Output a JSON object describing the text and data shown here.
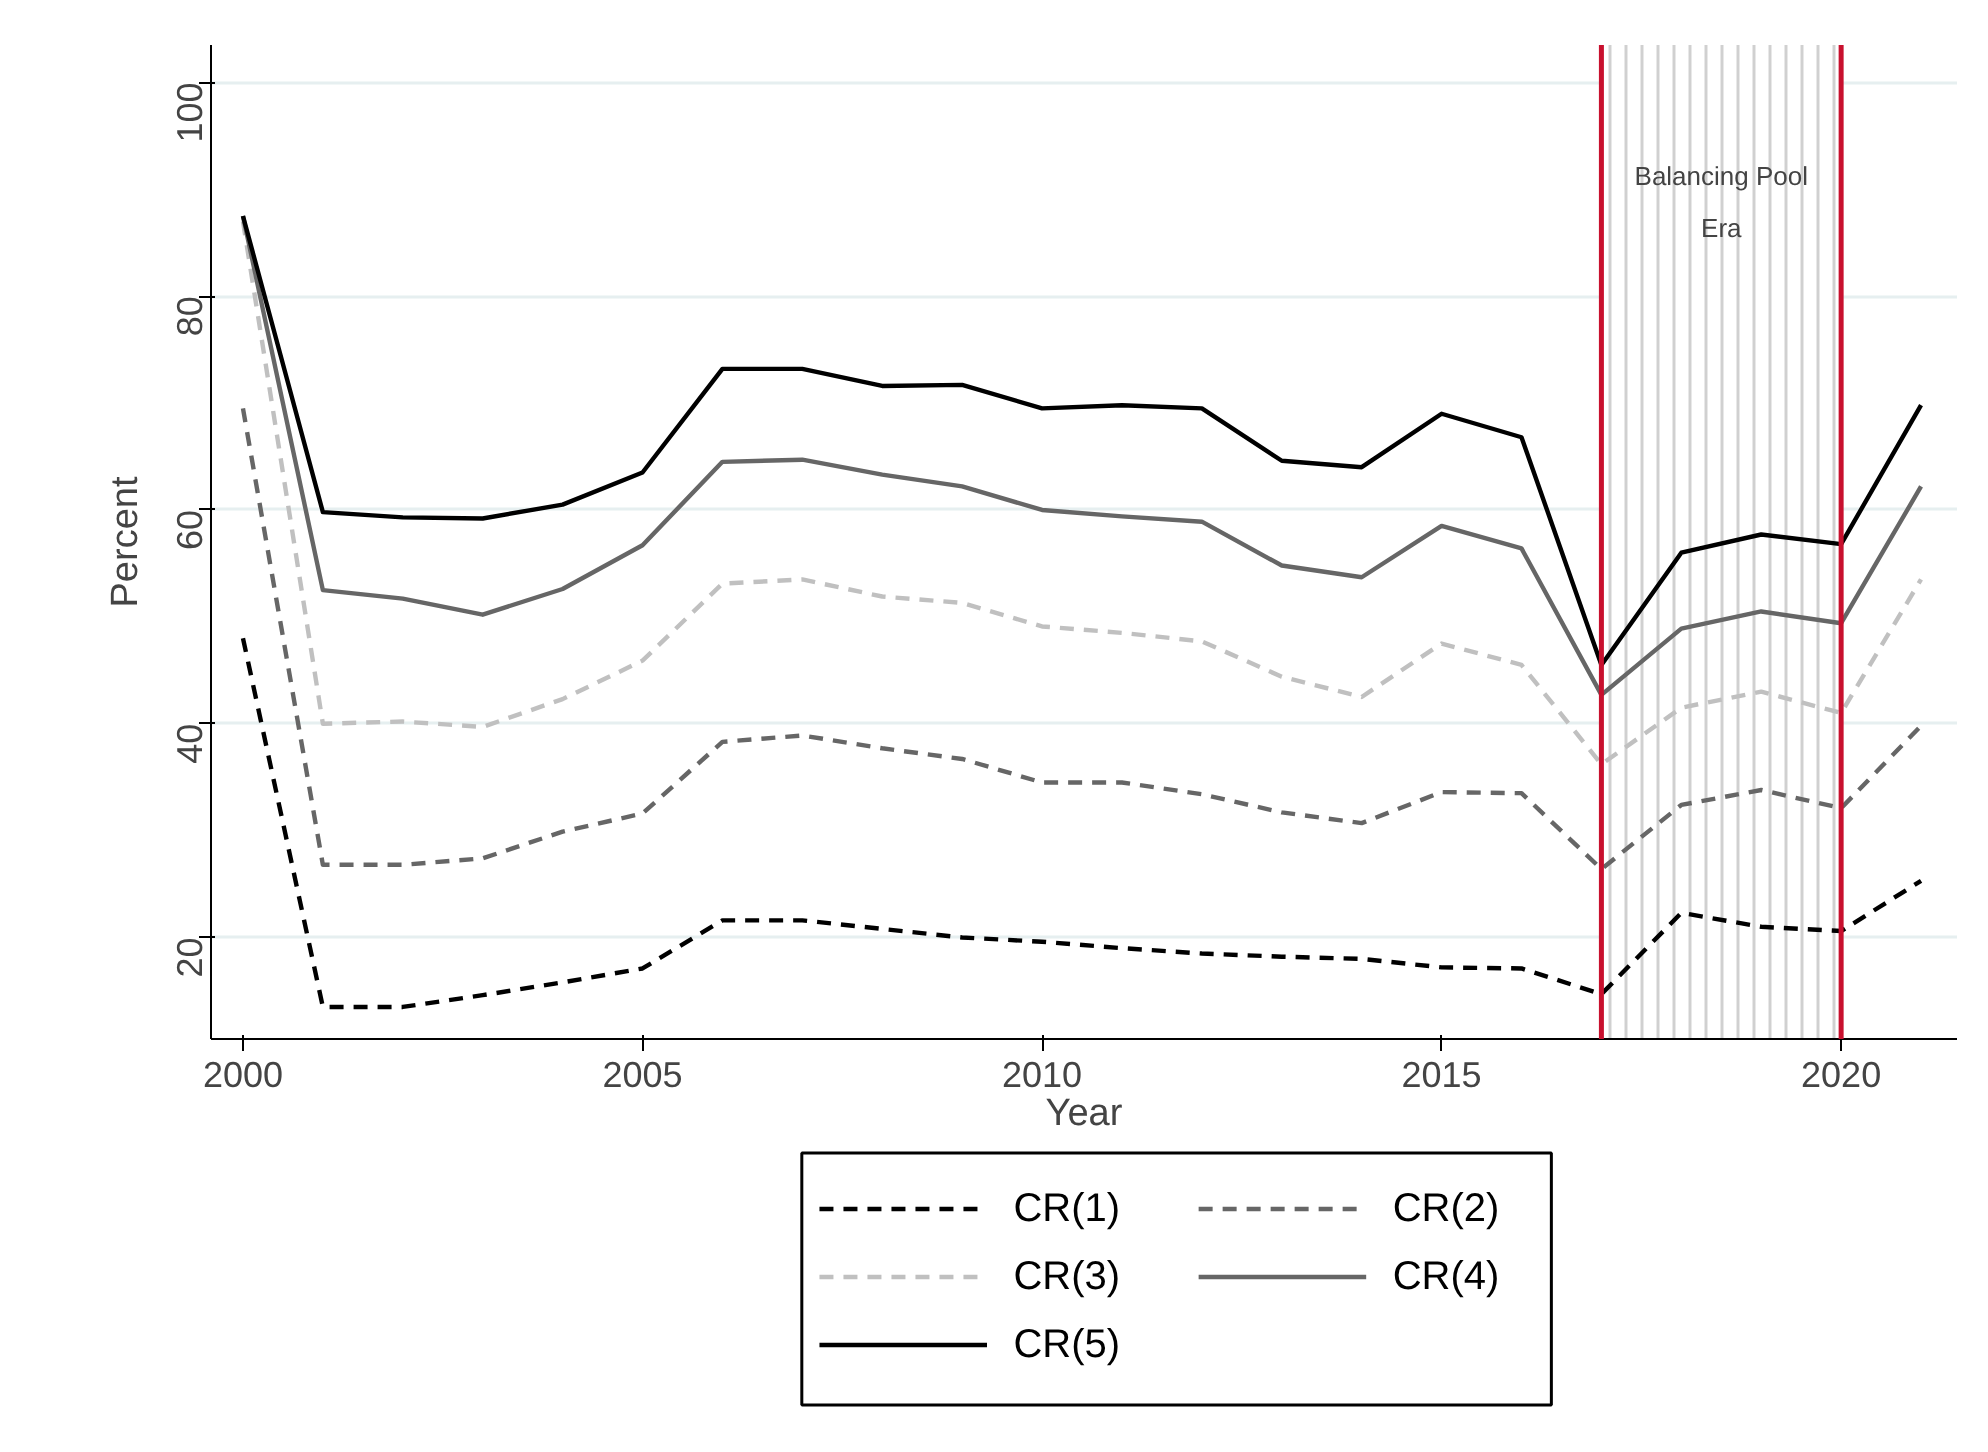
{
  "chart_data": {
    "type": "line",
    "xlabel": "Year",
    "ylabel": "Percent",
    "x": [
      2000,
      2001,
      2002,
      2003,
      2004,
      2005,
      2006,
      2007,
      2008,
      2009,
      2010,
      2011,
      2012,
      2013,
      2014,
      2015,
      2016,
      2017,
      2018,
      2019,
      2020,
      2021
    ],
    "series": [
      {
        "name": "CR(1)",
        "color": "#000000",
        "line_style": "dashed",
        "values": [
          48,
          13.5,
          13.5,
          14.6,
          15.8,
          17.1,
          21.6,
          21.6,
          20.8,
          20.0,
          19.6,
          19.0,
          18.5,
          18.2,
          18.0,
          17.2,
          17.1,
          14.7,
          22.3,
          21.0,
          20.6,
          25.3
        ]
      },
      {
        "name": "CR(2)",
        "color": "#666666",
        "line_style": "dashed",
        "values": [
          69.5,
          26.8,
          26.8,
          27.4,
          29.9,
          31.6,
          38.3,
          38.9,
          37.7,
          36.7,
          34.5,
          34.5,
          33.4,
          31.7,
          30.7,
          33.6,
          33.5,
          26.4,
          32.4,
          33.8,
          32.1,
          39.8
        ]
      },
      {
        "name": "CR(3)",
        "color": "#c0c0c0",
        "line_style": "dashed",
        "values": [
          87,
          40,
          40.2,
          39.7,
          42.3,
          45.9,
          53.1,
          53.5,
          51.9,
          51.3,
          49.1,
          48.5,
          47.7,
          44.4,
          42.5,
          47.5,
          45.5,
          36.2,
          41.5,
          43,
          41,
          53.5
        ]
      },
      {
        "name": "CR(4)",
        "color": "#666666",
        "line_style": "solid",
        "values": [
          87.5,
          52.5,
          51.7,
          50.2,
          52.6,
          56.7,
          64.5,
          64.7,
          63.3,
          62.2,
          60.0,
          59.4,
          58.9,
          54.8,
          53.7,
          58.5,
          56.4,
          42.7,
          48.9,
          50.5,
          49.4,
          62.2
        ]
      },
      {
        "name": "CR(5)",
        "color": "#000000",
        "line_style": "solid",
        "values": [
          87.5,
          59.8,
          59.3,
          59.2,
          60.5,
          63.5,
          73.2,
          73.2,
          71.6,
          71.7,
          69.5,
          69.8,
          69.5,
          64.6,
          64.0,
          69.0,
          66.8,
          45.5,
          56,
          57.7,
          56.8,
          69.8
        ]
      }
    ],
    "xlim": [
      1999.6,
      2021.45
    ],
    "ylim": [
      10.5,
      103.5
    ],
    "xticks": [
      2000,
      2005,
      2010,
      2015,
      2020
    ],
    "yticks": [
      20,
      40,
      60,
      80,
      100
    ],
    "grid": "y",
    "legend": "bottom",
    "bands": [
      {
        "axis": "x",
        "from": 2017,
        "to": 2020,
        "label": "Balancing Pool\nEra",
        "color": "#d0d0d0"
      }
    ],
    "ref_lines": [
      {
        "axis": "x",
        "value": 2017,
        "color": "#c8102e",
        "line_style": "solid"
      },
      {
        "axis": "x",
        "value": 2020,
        "color": "#c8102e",
        "line_style": "solid"
      }
    ]
  }
}
